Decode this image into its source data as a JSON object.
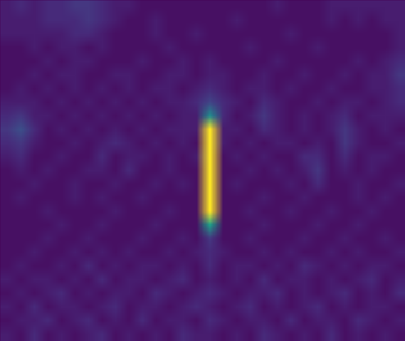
{
  "chart_data": {
    "type": "heatmap",
    "color": "viridis",
    "tick_labels": false,
    "zlim": [
      0,
      25
    ],
    "cells": [
      [
        2,
        1,
        3,
        1,
        2,
        1,
        2,
        3,
        1,
        2,
        1,
        2,
        1,
        3,
        2,
        2,
        1,
        2,
        1,
        3,
        2,
        1,
        2,
        1,
        3,
        1,
        2,
        1,
        2,
        1
      ],
      [
        1,
        2,
        2,
        3,
        1,
        2,
        3,
        1,
        2,
        1,
        3,
        1,
        2,
        2,
        1,
        3,
        2,
        1,
        2,
        2,
        1,
        3,
        1,
        2,
        2,
        1,
        3,
        2,
        1,
        2
      ],
      [
        2,
        1,
        3,
        1,
        2,
        2,
        1,
        2,
        3,
        1,
        2,
        2,
        1,
        2,
        3,
        2,
        1,
        2,
        3,
        1,
        2,
        1,
        2,
        3,
        1,
        2,
        1,
        2,
        2,
        1
      ],
      [
        1,
        2,
        1,
        2,
        3,
        1,
        2,
        1,
        2,
        2,
        1,
        3,
        2,
        1,
        2,
        3,
        2,
        1,
        2,
        2,
        3,
        1,
        2,
        1,
        2,
        3,
        1,
        2,
        1,
        3
      ],
      [
        2,
        1,
        2,
        2,
        1,
        2,
        1,
        3,
        1,
        2,
        2,
        1,
        2,
        3,
        1,
        2,
        1,
        2,
        1,
        3,
        1,
        2,
        2,
        1,
        2,
        1,
        2,
        3,
        1,
        2
      ],
      [
        1,
        2,
        1,
        1,
        2,
        1,
        3,
        1,
        2,
        1,
        2,
        2,
        1,
        2,
        1,
        3,
        1,
        2,
        2,
        1,
        2,
        1,
        3,
        2,
        1,
        2,
        1,
        2,
        2,
        1
      ],
      [
        1,
        1,
        2,
        1,
        1,
        2,
        1,
        2,
        1,
        2,
        1,
        1,
        2,
        1,
        2,
        3,
        2,
        1,
        1,
        2,
        1,
        2,
        1,
        1,
        2,
        1,
        2,
        1,
        1,
        2
      ],
      [
        1,
        1,
        1,
        2,
        1,
        1,
        2,
        1,
        1,
        1,
        2,
        1,
        1,
        2,
        1,
        4,
        1,
        1,
        2,
        1,
        1,
        1,
        2,
        1,
        1,
        2,
        1,
        1,
        2,
        1
      ],
      [
        1,
        1,
        1,
        1,
        2,
        1,
        1,
        2,
        1,
        1,
        1,
        2,
        1,
        1,
        1,
        14,
        1,
        1,
        1,
        2,
        1,
        1,
        1,
        2,
        1,
        1,
        2,
        1,
        1,
        1
      ],
      [
        1,
        1,
        1,
        2,
        1,
        1,
        1,
        1,
        2,
        1,
        1,
        1,
        2,
        1,
        1,
        25,
        1,
        1,
        2,
        1,
        1,
        2,
        1,
        1,
        2,
        1,
        1,
        2,
        1,
        1
      ],
      [
        1,
        2,
        1,
        1,
        1,
        2,
        1,
        2,
        1,
        1,
        2,
        1,
        1,
        1,
        1,
        25,
        1,
        1,
        1,
        2,
        1,
        1,
        2,
        1,
        1,
        1,
        2,
        1,
        2,
        1
      ],
      [
        1,
        1,
        2,
        1,
        1,
        2,
        1,
        1,
        2,
        1,
        1,
        2,
        1,
        2,
        1,
        25,
        1,
        2,
        1,
        1,
        1,
        2,
        1,
        3,
        1,
        1,
        2,
        1,
        1,
        2
      ],
      [
        1,
        2,
        1,
        2,
        1,
        1,
        2,
        2,
        1,
        3,
        1,
        1,
        2,
        1,
        1,
        25,
        1,
        1,
        2,
        1,
        2,
        1,
        2,
        4,
        1,
        2,
        1,
        2,
        1,
        1
      ],
      [
        2,
        3,
        1,
        1,
        2,
        1,
        1,
        3,
        1,
        2,
        2,
        1,
        2,
        1,
        2,
        25,
        1,
        2,
        1,
        2,
        1,
        1,
        3,
        3,
        1,
        3,
        1,
        2,
        2,
        1
      ],
      [
        3,
        4,
        2,
        1,
        1,
        2,
        1,
        2,
        3,
        2,
        1,
        2,
        1,
        2,
        1,
        25,
        2,
        1,
        2,
        1,
        2,
        2,
        1,
        2,
        1,
        4,
        2,
        1,
        1,
        2
      ],
      [
        4,
        6,
        3,
        1,
        2,
        1,
        2,
        1,
        2,
        1,
        2,
        1,
        2,
        2,
        2,
        25,
        2,
        2,
        1,
        3,
        2,
        1,
        2,
        1,
        2,
        4,
        2,
        1,
        2,
        1
      ],
      [
        3,
        4,
        2,
        2,
        1,
        2,
        1,
        2,
        1,
        2,
        1,
        2,
        1,
        2,
        2,
        12,
        3,
        1,
        2,
        4,
        2,
        1,
        2,
        1,
        2,
        3,
        1,
        2,
        2,
        2
      ],
      [
        2,
        2,
        2,
        1,
        2,
        1,
        2,
        1,
        2,
        1,
        2,
        1,
        2,
        2,
        3,
        5,
        3,
        2,
        1,
        3,
        2,
        1,
        1,
        2,
        1,
        2,
        2,
        1,
        2,
        3
      ],
      [
        1,
        2,
        1,
        2,
        1,
        2,
        1,
        2,
        1,
        2,
        1,
        2,
        2,
        1,
        2,
        3,
        2,
        1,
        2,
        2,
        1,
        2,
        1,
        1,
        2,
        1,
        1,
        2,
        2,
        3
      ],
      [
        1,
        1,
        2,
        1,
        2,
        2,
        1,
        1,
        2,
        2,
        1,
        1,
        2,
        2,
        1,
        2,
        2,
        1,
        1,
        2,
        1,
        1,
        2,
        1,
        1,
        2,
        1,
        2,
        2,
        4
      ],
      [
        1,
        1,
        1,
        2,
        1,
        2,
        2,
        1,
        1,
        1,
        2,
        1,
        1,
        2,
        1,
        2,
        1,
        1,
        1,
        1,
        2,
        1,
        1,
        1,
        1,
        1,
        2,
        1,
        2,
        3
      ],
      [
        1,
        1,
        2,
        1,
        2,
        2,
        1,
        2,
        1,
        1,
        1,
        1,
        2,
        1,
        1,
        1,
        1,
        1,
        2,
        1,
        1,
        1,
        1,
        2,
        1,
        1,
        1,
        1,
        1,
        2
      ],
      [
        2,
        2,
        2,
        2,
        2,
        3,
        3,
        2,
        1,
        1,
        1,
        2,
        1,
        1,
        2,
        1,
        1,
        1,
        1,
        1,
        1,
        2,
        1,
        1,
        1,
        1,
        1,
        1,
        1,
        2
      ],
      [
        2,
        2,
        2,
        3,
        3,
        3,
        4,
        3,
        2,
        1,
        1,
        2,
        1,
        1,
        1,
        1,
        1,
        2,
        1,
        1,
        1,
        1,
        1,
        1,
        2,
        1,
        2,
        1,
        2,
        2
      ],
      [
        2,
        3,
        2,
        3,
        3,
        4,
        4,
        3,
        2,
        2,
        1,
        1,
        1,
        1,
        1,
        1,
        1,
        1,
        1,
        1,
        2,
        1,
        1,
        1,
        2,
        2,
        2,
        2,
        2,
        2
      ]
    ]
  }
}
